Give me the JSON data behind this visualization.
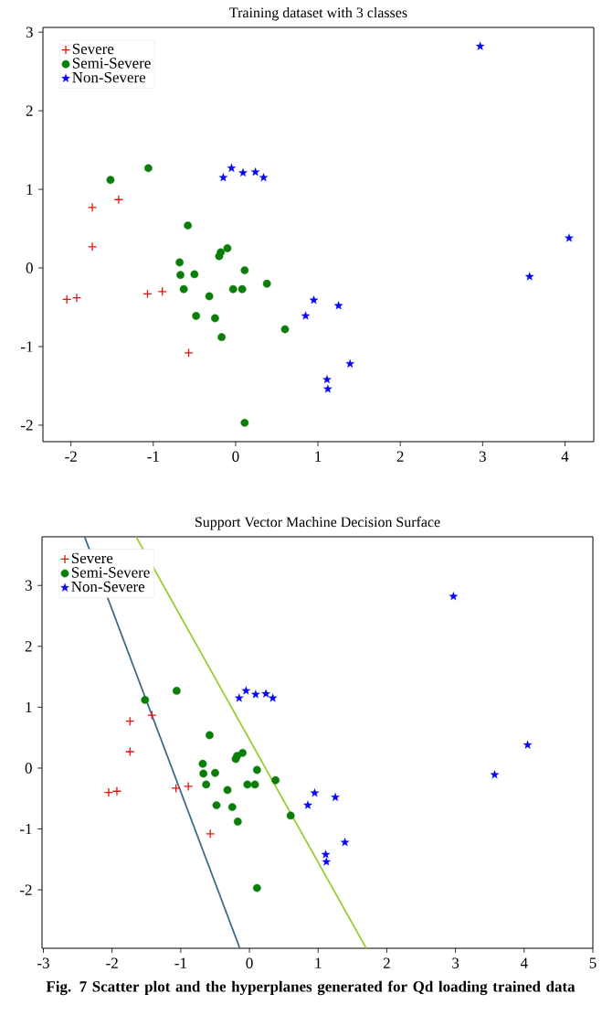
{
  "chart_data": [
    {
      "type": "scatter",
      "title": "Training dataset with 3 classes",
      "xlim": [
        -2.34,
        4.35
      ],
      "ylim": [
        -2.21,
        3.06
      ],
      "xticks": [
        -2,
        -1,
        0,
        1,
        2,
        3,
        4
      ],
      "yticks": [
        -2,
        -1,
        0,
        1,
        2,
        3
      ],
      "legend": "top left",
      "series": [
        {
          "name": "Severe",
          "color": "#e8120c",
          "marker": "cross",
          "x": [
            -2.05,
            -1.93,
            -1.74,
            -1.74,
            -1.42,
            -1.07,
            -0.89,
            -0.57
          ],
          "values": [
            -0.4,
            -0.38,
            0.77,
            0.27,
            0.87,
            -0.33,
            -0.3,
            -1.08
          ]
        },
        {
          "name": "Semi-Severe",
          "color": "#0a7d0a",
          "marker": "circle",
          "x": [
            -1.52,
            -1.06,
            -0.58,
            -0.68,
            -0.67,
            -0.5,
            -0.63,
            -0.1,
            -0.2,
            -0.18,
            0.11,
            -0.32,
            -0.03,
            0.08,
            0.38,
            -0.48,
            -0.25,
            -0.17,
            0.6,
            0.11
          ],
          "values": [
            1.12,
            1.27,
            0.54,
            0.07,
            -0.09,
            -0.08,
            -0.27,
            0.25,
            0.15,
            0.2,
            -0.03,
            -0.36,
            -0.27,
            -0.27,
            -0.2,
            -0.61,
            -0.64,
            -0.88,
            -0.78,
            -1.97
          ]
        },
        {
          "name": "Non-Severe",
          "color": "#0a0af0",
          "marker": "star",
          "x": [
            -0.15,
            -0.05,
            0.09,
            0.24,
            0.34,
            2.97,
            4.05,
            3.57,
            0.95,
            0.85,
            1.25,
            1.39,
            1.11,
            1.12
          ],
          "values": [
            1.15,
            1.27,
            1.21,
            1.22,
            1.15,
            2.82,
            0.38,
            -0.11,
            -0.41,
            -0.61,
            -0.48,
            -1.22,
            -1.42,
            -1.54
          ]
        }
      ]
    },
    {
      "type": "scatter",
      "title": "Support Vector Machine Decision Surface",
      "xlim": [
        -3.02,
        5.0
      ],
      "ylim": [
        -2.96,
        3.8
      ],
      "xticks": [
        -3,
        -2,
        -1,
        0,
        1,
        2,
        3,
        4,
        5
      ],
      "yticks": [
        -2,
        -1,
        0,
        1,
        2,
        3
      ],
      "legend": "top left",
      "annotations": [
        "Fig. 7 Scatter plot and the hyperplanes generated for Qd loading trained data"
      ],
      "series": [
        {
          "type": "line",
          "color": "#3d6b8c",
          "marker": "none",
          "x": [
            -2.4,
            -0.14
          ],
          "values": [
            3.8,
            -2.96
          ]
        },
        {
          "type": "line",
          "color": "#9acd32",
          "marker": "none",
          "x": [
            -1.65,
            1.7
          ],
          "values": [
            3.8,
            -2.96
          ]
        },
        {
          "name": "Severe",
          "color": "#e8120c",
          "marker": "cross",
          "x": [
            -2.05,
            -1.93,
            -1.74,
            -1.74,
            -1.42,
            -1.07,
            -0.89,
            -0.57
          ],
          "values": [
            -0.4,
            -0.38,
            0.77,
            0.27,
            0.87,
            -0.33,
            -0.3,
            -1.08
          ]
        },
        {
          "name": "Semi-Severe",
          "color": "#0a7d0a",
          "marker": "circle",
          "x": [
            -1.52,
            -1.06,
            -0.58,
            -0.68,
            -0.67,
            -0.5,
            -0.63,
            -0.1,
            -0.2,
            -0.18,
            0.11,
            -0.32,
            -0.03,
            0.08,
            0.38,
            -0.48,
            -0.25,
            -0.17,
            0.6,
            0.11
          ],
          "values": [
            1.12,
            1.27,
            0.54,
            0.07,
            -0.09,
            -0.08,
            -0.27,
            0.25,
            0.15,
            0.2,
            -0.03,
            -0.36,
            -0.27,
            -0.27,
            -0.2,
            -0.61,
            -0.64,
            -0.88,
            -0.78,
            -1.97
          ]
        },
        {
          "name": "Non-Severe",
          "color": "#0a0af0",
          "marker": "star",
          "x": [
            -0.15,
            -0.05,
            0.09,
            0.24,
            0.34,
            2.97,
            4.05,
            3.57,
            0.95,
            0.85,
            1.25,
            1.39,
            1.11,
            1.12
          ],
          "values": [
            1.15,
            1.27,
            1.21,
            1.22,
            1.15,
            2.82,
            0.38,
            -0.11,
            -0.41,
            -0.61,
            -0.48,
            -1.22,
            -1.42,
            -1.54
          ]
        }
      ]
    }
  ]
}
